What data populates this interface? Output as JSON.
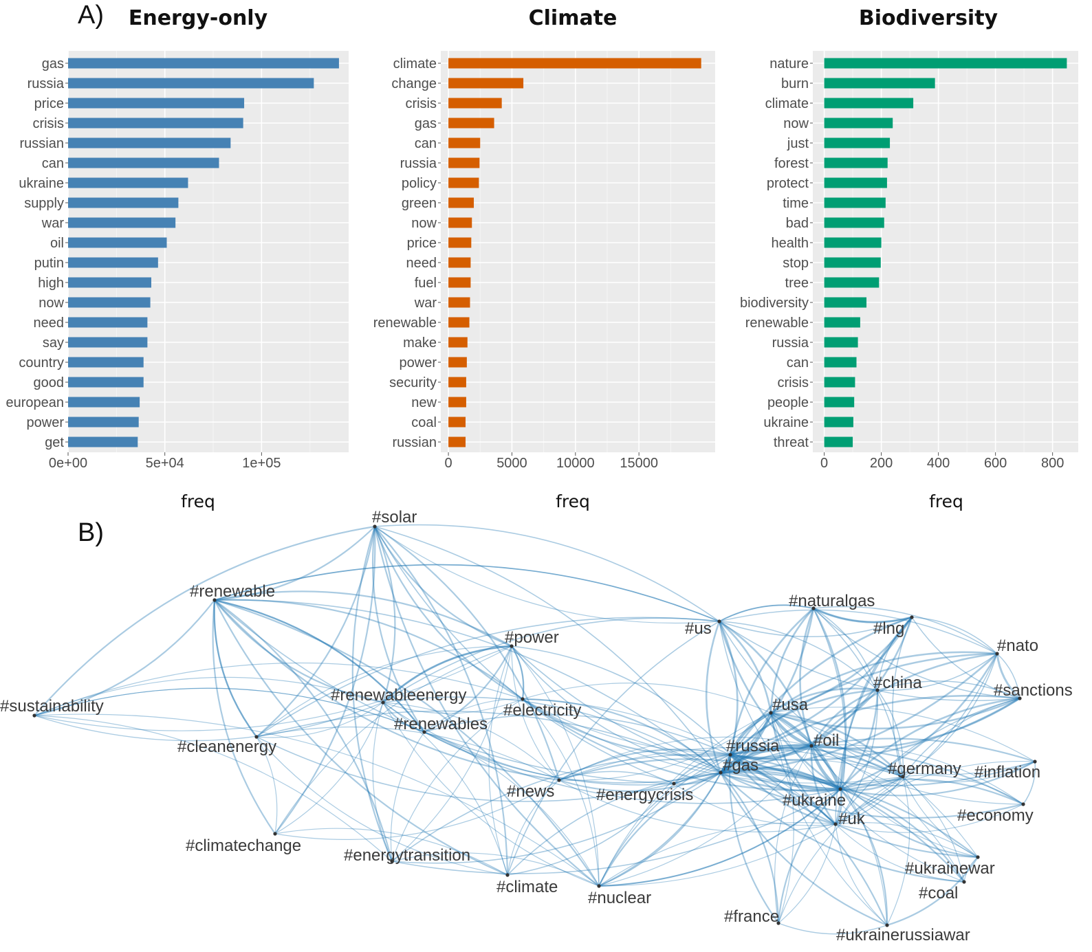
{
  "figure": {
    "label_a": "A)",
    "label_b": "B)"
  },
  "chart_data": [
    {
      "type": "bar",
      "orientation": "horizontal",
      "title": "Energy-only",
      "xlabel": "freq",
      "color": "#4682b4",
      "xlim": [
        0,
        145000
      ],
      "xticks": [
        0,
        50000,
        100000
      ],
      "xtick_labels": [
        "0e+00",
        "5e+04",
        "1e+05"
      ],
      "grid": true,
      "categories": [
        "gas",
        "russia",
        "price",
        "crisis",
        "russian",
        "can",
        "ukraine",
        "supply",
        "war",
        "oil",
        "putin",
        "high",
        "now",
        "need",
        "say",
        "country",
        "good",
        "european",
        "power",
        "get"
      ],
      "values": [
        140000,
        127000,
        91000,
        90500,
        84000,
        78000,
        62000,
        57000,
        55500,
        51000,
        46500,
        43000,
        42500,
        41000,
        41000,
        39000,
        39000,
        37000,
        36500,
        36000
      ]
    },
    {
      "type": "bar",
      "orientation": "horizontal",
      "title": "Climate",
      "xlabel": "freq",
      "color": "#d55e00",
      "xlim": [
        -600,
        21000
      ],
      "xticks": [
        0,
        5000,
        10000,
        15000
      ],
      "xtick_labels": [
        "0",
        "5000",
        "10000",
        "15000"
      ],
      "grid": true,
      "categories": [
        "climate",
        "change",
        "crisis",
        "gas",
        "can",
        "russia",
        "policy",
        "green",
        "now",
        "price",
        "need",
        "fuel",
        "war",
        "renewable",
        "make",
        "power",
        "security",
        "new",
        "coal",
        "russian"
      ],
      "values": [
        19900,
        5900,
        4200,
        3600,
        2500,
        2450,
        2400,
        2000,
        1850,
        1800,
        1750,
        1750,
        1700,
        1650,
        1500,
        1450,
        1400,
        1400,
        1350,
        1350
      ]
    },
    {
      "type": "bar",
      "orientation": "horizontal",
      "title": "Biodiversity",
      "xlabel": "freq",
      "color": "#009e73",
      "xlim": [
        -40,
        890
      ],
      "xticks": [
        0,
        200,
        400,
        600,
        800
      ],
      "xtick_labels": [
        "0",
        "200",
        "400",
        "600",
        "800"
      ],
      "grid": true,
      "categories": [
        "nature",
        "burn",
        "climate",
        "now",
        "just",
        "forest",
        "protect",
        "time",
        "bad",
        "health",
        "stop",
        "tree",
        "biodiversity",
        "renewable",
        "russia",
        "can",
        "crisis",
        "people",
        "ukraine",
        "threat"
      ],
      "values": [
        850,
        388,
        312,
        240,
        230,
        222,
        220,
        215,
        210,
        200,
        198,
        192,
        148,
        126,
        118,
        113,
        108,
        105,
        102,
        100
      ]
    },
    {
      "type": "network",
      "edge_color": "#1f77b4",
      "nodes": [
        {
          "id": "solar",
          "label": "#solar"
        },
        {
          "id": "renewable",
          "label": "#renewable"
        },
        {
          "id": "power",
          "label": "#power"
        },
        {
          "id": "us",
          "label": "#us"
        },
        {
          "id": "naturalgas",
          "label": "#naturalgas"
        },
        {
          "id": "lng",
          "label": "#lng"
        },
        {
          "id": "nato",
          "label": "#nato"
        },
        {
          "id": "china",
          "label": "#china"
        },
        {
          "id": "sanctions",
          "label": "#sanctions"
        },
        {
          "id": "sustainability",
          "label": "#sustainability"
        },
        {
          "id": "renewableenergy",
          "label": "#renewableenergy"
        },
        {
          "id": "electricity",
          "label": "#electricity"
        },
        {
          "id": "usa",
          "label": "#usa"
        },
        {
          "id": "renewables",
          "label": "#renewables"
        },
        {
          "id": "cleanenergy",
          "label": "#cleanenergy"
        },
        {
          "id": "russia",
          "label": "#russia"
        },
        {
          "id": "oil",
          "label": "#oil"
        },
        {
          "id": "gas",
          "label": "#gas"
        },
        {
          "id": "germany",
          "label": "#germany"
        },
        {
          "id": "inflation",
          "label": "#inflation"
        },
        {
          "id": "news",
          "label": "#news"
        },
        {
          "id": "energycrisis",
          "label": "#energycrisis"
        },
        {
          "id": "ukraine",
          "label": "#ukraine"
        },
        {
          "id": "economy",
          "label": "#economy"
        },
        {
          "id": "uk",
          "label": "#uk"
        },
        {
          "id": "climatechange",
          "label": "#climatechange"
        },
        {
          "id": "energytransition",
          "label": "#energytransition"
        },
        {
          "id": "ukrainewar",
          "label": "#ukrainewar"
        },
        {
          "id": "climate",
          "label": "#climate"
        },
        {
          "id": "nuclear",
          "label": "#nuclear"
        },
        {
          "id": "coal",
          "label": "#coal"
        },
        {
          "id": "france",
          "label": "#france"
        },
        {
          "id": "ukrainerussiawar",
          "label": "#ukrainerussiawar"
        }
      ]
    }
  ]
}
